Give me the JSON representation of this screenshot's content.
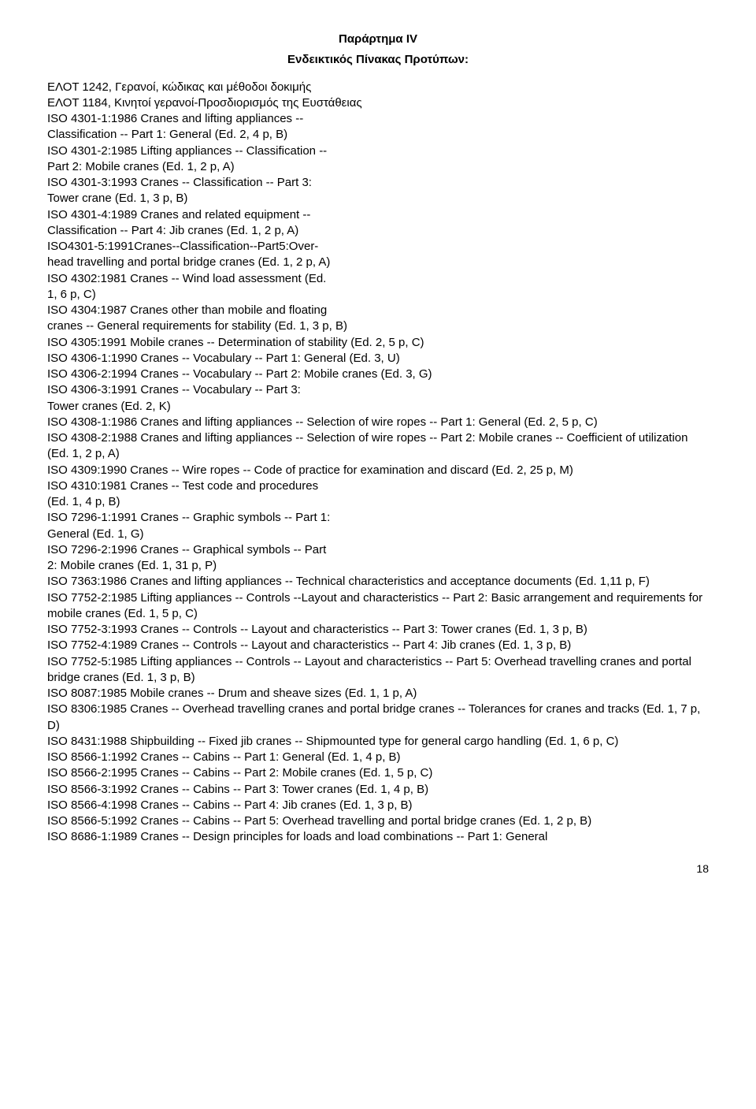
{
  "title": "Παράρτημα IV",
  "subtitle": "Ενδεικτικός Πίνακας Προτύπων:",
  "lines": [
    "ΕΛΟΤ 1242, Γερανοί, κώδικας και μέθοδοι δοκιμής",
    "ΕΛΟΤ 1184, Κινητοί γερανοί-Προσδιορισμός της Ευστάθειας",
    "ISO 4301-1:1986 Cranes and lifting appliances --",
    "Classification -- Part 1: General (Ed. 2, 4 p, B)",
    "ISO 4301-2:1985 Lifting appliances -- Classification --",
    "Part 2: Mobile cranes (Ed. 1, 2 p, A)",
    "ISO 4301-3:1993 Cranes -- Classification -- Part 3:",
    "Tower crane (Ed. 1, 3 p, B)",
    "ISO 4301-4:1989 Cranes and related equipment --",
    "Classification -- Part 4: Jib cranes (Ed. 1, 2 p, A)",
    "ISO4301-5:1991Cranes--Classification--Part5:Over-",
    "head travelling and portal bridge cranes (Ed. 1, 2 p, A)",
    "ISO 4302:1981 Cranes -- Wind load assessment (Ed.",
    "1, 6 p, C)",
    "ISO 4304:1987 Cranes other than mobile and floating",
    "cranes -- General requirements for stability (Ed. 1, 3 p, B)",
    "ISO 4305:1991 Mobile cranes -- Determination of stability (Ed. 2, 5 p, C)",
    "ISO 4306-1:1990 Cranes -- Vocabulary -- Part 1: General (Ed. 3, U)",
    "ISO 4306-2:1994 Cranes -- Vocabulary -- Part 2: Mobile cranes (Ed. 3, G)",
    "ISO 4306-3:1991 Cranes -- Vocabulary -- Part 3:",
    "Tower cranes (Ed. 2, K)",
    "ISO 4308-1:1986 Cranes and lifting appliances -- Selection of wire ropes -- Part 1: General (Ed. 2, 5 p, C)",
    "ISO 4308-2:1988 Cranes and lifting appliances -- Selection of wire ropes -- Part 2: Mobile cranes -- Coefficient of utilization (Ed. 1, 2 p, A)",
    "ISO 4309:1990 Cranes -- Wire ropes -- Code of practice for examination and discard (Ed. 2, 25 p, M)",
    "ISO 4310:1981 Cranes -- Test code and procedures",
    "(Ed. 1, 4 p, B)",
    "ISO 7296-1:1991 Cranes -- Graphic symbols -- Part 1:",
    "General (Ed. 1, G)",
    "ISO 7296-2:1996 Cranes -- Graphical symbols -- Part",
    "2: Mobile cranes (Ed. 1, 31 p, P)",
    "ISO 7363:1986 Cranes and lifting appliances -- Technical characteristics and acceptance documents (Ed. 1,11 p, F)",
    "ISO 7752-2:1985 Lifting appliances -- Controls --Layout and characteristics -- Part 2: Basic arrangement and requirements for mobile cranes (Ed. 1, 5 p, C)",
    "ISO 7752-3:1993 Cranes -- Controls -- Layout and characteristics -- Part 3: Tower cranes (Ed. 1, 3 p, B)",
    "ISO 7752-4:1989 Cranes -- Controls -- Layout and characteristics -- Part 4: Jib cranes (Ed. 1, 3 p, B)",
    "ISO 7752-5:1985 Lifting appliances -- Controls -- Layout and characteristics -- Part 5: Overhead travelling cranes and portal bridge cranes (Ed. 1, 3 p, B)",
    "ISO 8087:1985 Mobile cranes -- Drum and sheave sizes (Ed. 1, 1 p, A)",
    "ISO 8306:1985 Cranes -- Overhead travelling cranes and portal bridge cranes -- Tolerances for cranes and tracks (Ed. 1, 7 p, D)",
    "ISO 8431:1988 Shipbuilding -- Fixed jib cranes -- Shipmounted type for general cargo handling (Ed. 1, 6 p, C)",
    "ISO 8566-1:1992 Cranes -- Cabins -- Part 1: General (Ed. 1, 4 p, B)",
    "ISO 8566-2:1995 Cranes -- Cabins -- Part 2: Mobile cranes (Ed. 1, 5 p, C)",
    "ISO 8566-3:1992 Cranes -- Cabins -- Part 3: Tower cranes (Ed. 1, 4 p, B)",
    "ISO 8566-4:1998 Cranes -- Cabins -- Part 4: Jib cranes (Ed. 1, 3 p, B)",
    "ISO 8566-5:1992 Cranes -- Cabins -- Part 5: Overhead travelling and portal bridge cranes (Ed. 1, 2 p, B)",
    "ISO 8686-1:1989 Cranes -- Design principles for loads and load combinations -- Part 1: General"
  ],
  "pageNumber": "18"
}
